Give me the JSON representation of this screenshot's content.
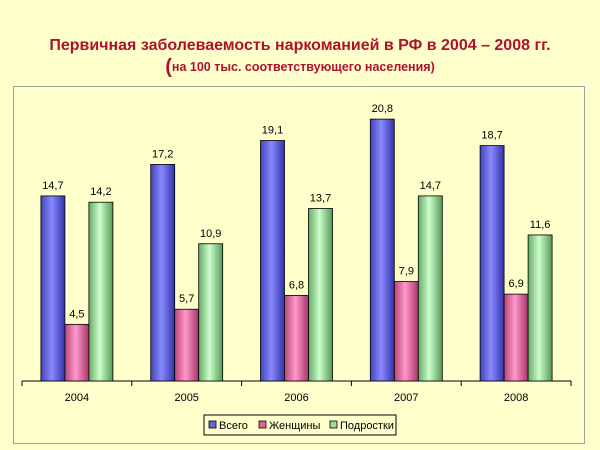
{
  "title": "Первичная заболеваемость наркоманией в РФ в 2004 – 2008 гг.",
  "subtitle_open": "(",
  "subtitle": "на 100 тыс. соответствующего населения)",
  "chart_data": {
    "type": "bar",
    "categories": [
      "2004",
      "2005",
      "2006",
      "2007",
      "2008"
    ],
    "series": [
      {
        "name": "Всего",
        "values": [
          14.7,
          17.2,
          19.1,
          20.8,
          18.7
        ],
        "labels": [
          "14,7",
          "17,2",
          "19,1",
          "20,8",
          "18,7"
        ],
        "color": "#6666dd"
      },
      {
        "name": "Женщины",
        "values": [
          4.5,
          5.7,
          6.8,
          7.9,
          6.9
        ],
        "labels": [
          "4,5",
          "5,7",
          "6,8",
          "7,9",
          "6,9"
        ],
        "color": "#dd6699"
      },
      {
        "name": "Подростки",
        "values": [
          14.2,
          10.9,
          13.7,
          14.7,
          11.6
        ],
        "labels": [
          "14,2",
          "10,9",
          "13,7",
          "14,7",
          "11,6"
        ],
        "color": "#99dd99"
      }
    ],
    "ylim": [
      0,
      22
    ],
    "grid": false,
    "legend_position": "bottom"
  }
}
